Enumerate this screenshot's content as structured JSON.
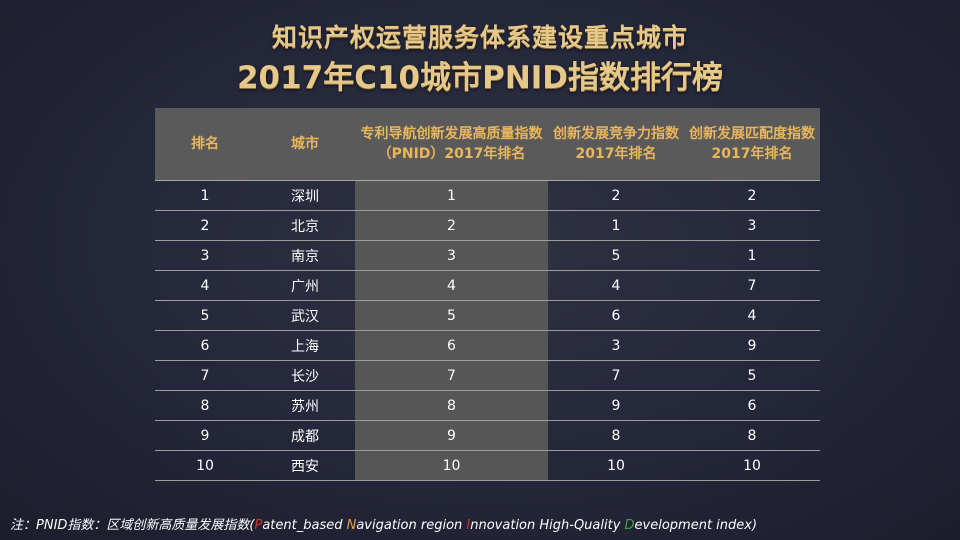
{
  "title_line1": "知识产权运营服务体系建设重点城市",
  "title_line2": "2017年C10城市PNID指数排行榜",
  "table": {
    "headers": [
      "排名",
      "城市",
      "专利导航创新发展高质量指数（PNID）2017年排名",
      "创新发展竞争力指数2017年排名",
      "创新发展匹配度指数2017年排名"
    ],
    "rows": [
      [
        "1",
        "深圳",
        "1",
        "2",
        "2"
      ],
      [
        "2",
        "北京",
        "2",
        "1",
        "3"
      ],
      [
        "3",
        "南京",
        "3",
        "5",
        "1"
      ],
      [
        "4",
        "广州",
        "4",
        "4",
        "7"
      ],
      [
        "5",
        "武汉",
        "5",
        "6",
        "4"
      ],
      [
        "6",
        "上海",
        "6",
        "3",
        "9"
      ],
      [
        "7",
        "长沙",
        "7",
        "7",
        "5"
      ],
      [
        "8",
        "苏州",
        "8",
        "9",
        "6"
      ],
      [
        "9",
        "成都",
        "9",
        "8",
        "8"
      ],
      [
        "10",
        "西安",
        "10",
        "10",
        "10"
      ]
    ]
  },
  "note": {
    "prefix": "注：PNID指数：区域创新高质量发展指数(",
    "p_letter": "P",
    "p_rest": "atent_based ",
    "n_letter": "N",
    "n_rest": "avigation region ",
    "i_letter": "I",
    "i_rest": "nnovation High-Quality ",
    "d_letter": "D",
    "d_rest": "evelopment index)"
  },
  "colors": {
    "title_gold": "#e6c98a",
    "header_text": "#e9b65c",
    "header_bg": "#5a5a5a",
    "highlight_col_bg": "#565656",
    "note_red": "#d0342c",
    "note_orange": "#e8a33a",
    "note_green": "#3fa24a"
  }
}
